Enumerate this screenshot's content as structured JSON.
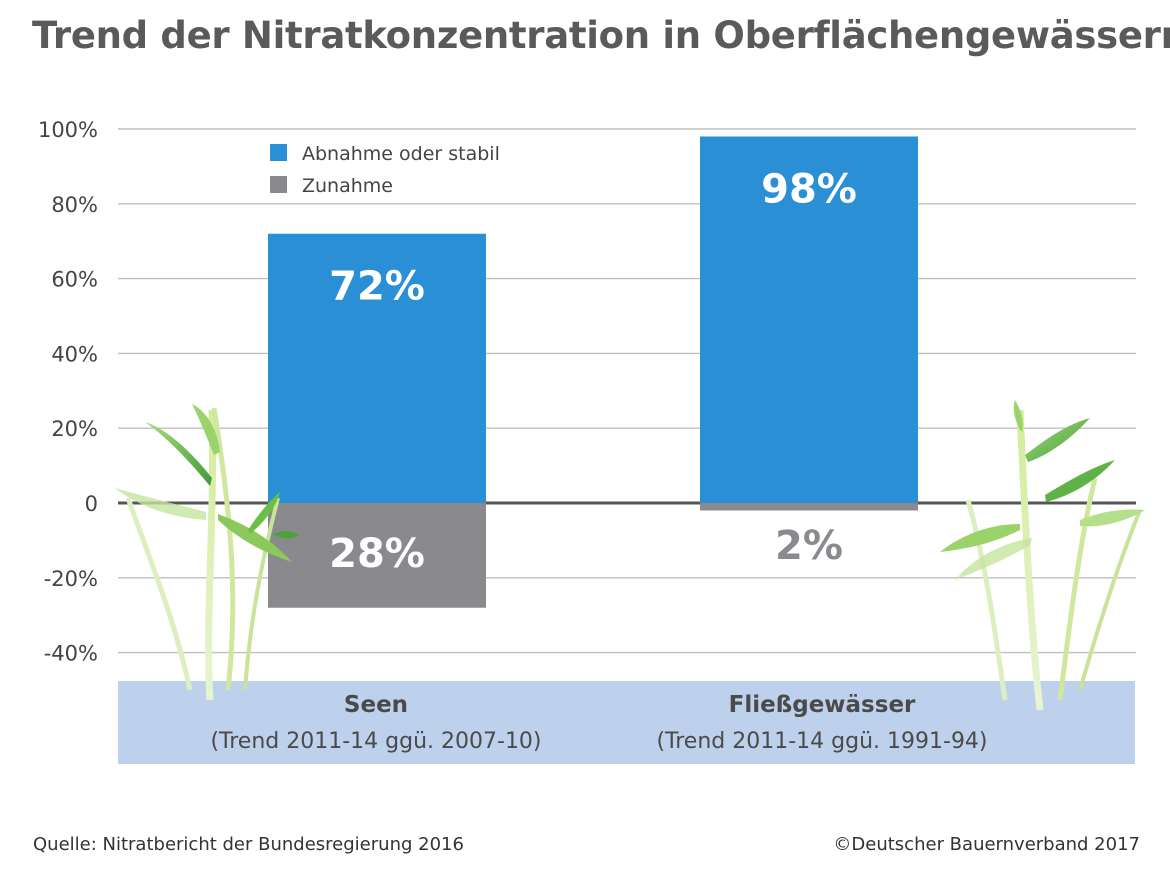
{
  "title": "Trend der Nitratkonzentration in Oberflächengewässern",
  "source": "Quelle: Nitratbericht der Bundesregierung 2016",
  "copyright": "©Deutscher Bauernverband 2017",
  "colors": {
    "abnahme": "#2b8fd6",
    "zunahme": "#8a8a8e",
    "label_band": "#bdd1ec",
    "grid": "#bfbfbf",
    "plants": "#6cbf45"
  },
  "chart_data": {
    "type": "bar",
    "title": "Trend der Nitratkonzentration in Oberflächengewässern",
    "categories": [
      {
        "name": "Seen",
        "sub": "(Trend 2011-14 ggü. 2007-10)"
      },
      {
        "name": "Fließgewässer",
        "sub": "(Trend 2011-14 ggü. 1991-94)"
      }
    ],
    "series": [
      {
        "name": "Abnahme oder stabil",
        "values": [
          72,
          98
        ],
        "labels": [
          "72%",
          "98%"
        ],
        "direction": "up"
      },
      {
        "name": "Zunahme",
        "values": [
          28,
          2
        ],
        "labels": [
          "28%",
          "2%"
        ],
        "direction": "down"
      }
    ],
    "yticks": [
      "100%",
      "80%",
      "60%",
      "40%",
      "20%",
      "0",
      "-20%",
      "-40%"
    ],
    "ytick_values": [
      100,
      80,
      60,
      40,
      20,
      0,
      -20,
      -40
    ],
    "ylim": [
      -40,
      100
    ],
    "grid": true,
    "legend_position": "top-left"
  }
}
